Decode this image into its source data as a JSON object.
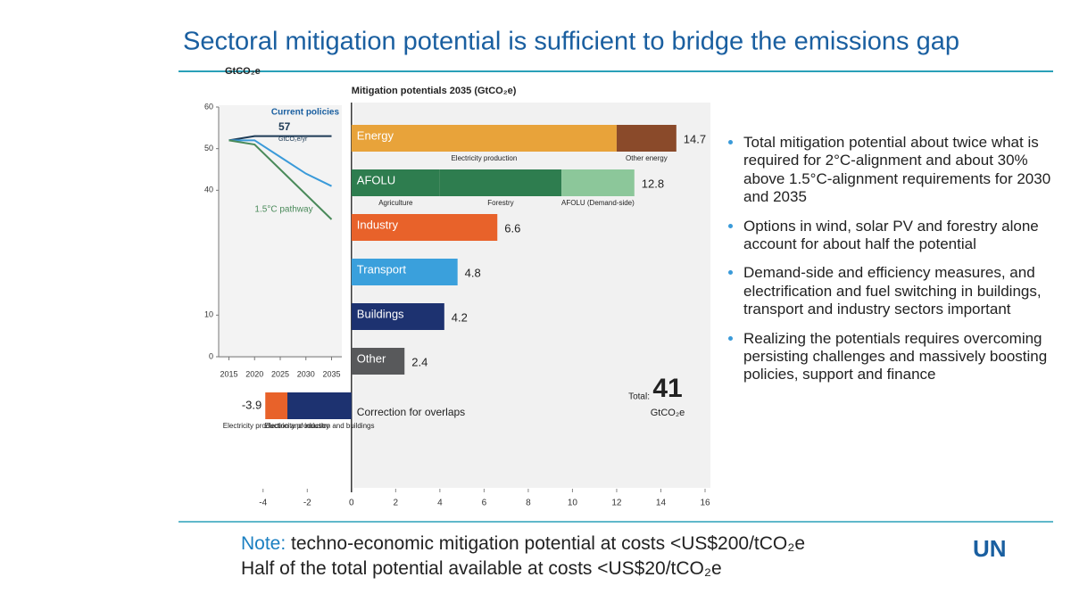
{
  "title": "Sectoral mitigation potential is sufficient to bridge the emissions gap",
  "chart_data": [
    {
      "type": "line",
      "ylabel": "GtCO₂e",
      "x": [
        2015,
        2020,
        2025,
        2030,
        2035
      ],
      "xlim": [
        2013,
        2037
      ],
      "xticks": [
        2015,
        2020,
        2025,
        2030,
        2035
      ],
      "ylim": [
        0,
        60
      ],
      "yticks": [
        0,
        10,
        40,
        50,
        60
      ],
      "series": [
        {
          "name": "Current policies",
          "color": "#1d3a55",
          "values": [
            52,
            53,
            53,
            53,
            53
          ]
        },
        {
          "color": "#3a9ad9",
          "values": [
            52,
            52,
            48,
            44,
            41
          ]
        },
        {
          "name": "1.5°C pathway",
          "color": "#4a8a5a",
          "values": [
            52,
            51,
            45,
            39,
            33
          ]
        }
      ],
      "annotations": [
        "57",
        "GtCO₂e/yr"
      ]
    },
    {
      "type": "bar",
      "orientation": "horizontal",
      "title": "Mitigation potentials 2035 (GtCO₂e)",
      "xlim": [
        -5,
        16
      ],
      "xticks": [
        -4,
        -2,
        0,
        2,
        4,
        6,
        8,
        10,
        12,
        14,
        16
      ],
      "bars": [
        {
          "label": "Energy",
          "segments": [
            {
              "name": "Electricity production",
              "value": 12.0,
              "color": "#e8a33a"
            },
            {
              "name": "Other energy",
              "value": 2.7,
              "color": "#8a4a2a"
            }
          ],
          "total": 14.7
        },
        {
          "label": "AFOLU",
          "segments": [
            {
              "name": "Agriculture",
              "value": 4.0,
              "color": "#2e7d4f"
            },
            {
              "name": "Forestry",
              "value": 5.5,
              "color": "#2e7d4f"
            },
            {
              "name": "AFOLU (Demand-side)",
              "value": 3.3,
              "color": "#8cc79a"
            }
          ],
          "total": 12.8
        },
        {
          "label": "Industry",
          "segments": [
            {
              "value": 6.6,
              "color": "#e8622a"
            }
          ],
          "total": 6.6
        },
        {
          "label": "Transport",
          "segments": [
            {
              "value": 4.8,
              "color": "#3aa0dc"
            }
          ],
          "total": 4.8
        },
        {
          "label": "Buildings",
          "segments": [
            {
              "value": 4.2,
              "color": "#1d3270"
            }
          ],
          "total": 4.2
        },
        {
          "label": "Other",
          "segments": [
            {
              "value": 2.4,
              "color": "#58595b"
            }
          ],
          "total": 2.4
        },
        {
          "label": "Correction for overlaps",
          "segments": [
            {
              "name": "Electricity production and buildings",
              "value": -2.9,
              "color": "#1d3270"
            },
            {
              "name": "Electricity production and industry",
              "value": -1.0,
              "color": "#e8622a"
            }
          ],
          "total": -3.9
        }
      ],
      "total_label": "Total:",
      "total_value": 41,
      "total_unit": "GtCO₂e"
    }
  ],
  "bullets": [
    "Total mitigation potential about twice what is required for 2°C-alignment and about 30% above 1.5°C-alignment requirements for 2030 and 2035",
    "Options in wind, solar PV and forestry alone account for about half the potential",
    "Demand-side and efficiency measures, and electrification and fuel switching in buildings, transport and industry sectors important",
    "Realizing the potentials requires overcoming persisting challenges and massively boosting policies, support and finance"
  ],
  "note": {
    "label": "Note:",
    "text": "techno-economic mitigation potential at costs <US$200/tCO₂e"
  },
  "note2": "Half of the total potential available at costs <US$20/tCO₂e",
  "logo": "UN"
}
